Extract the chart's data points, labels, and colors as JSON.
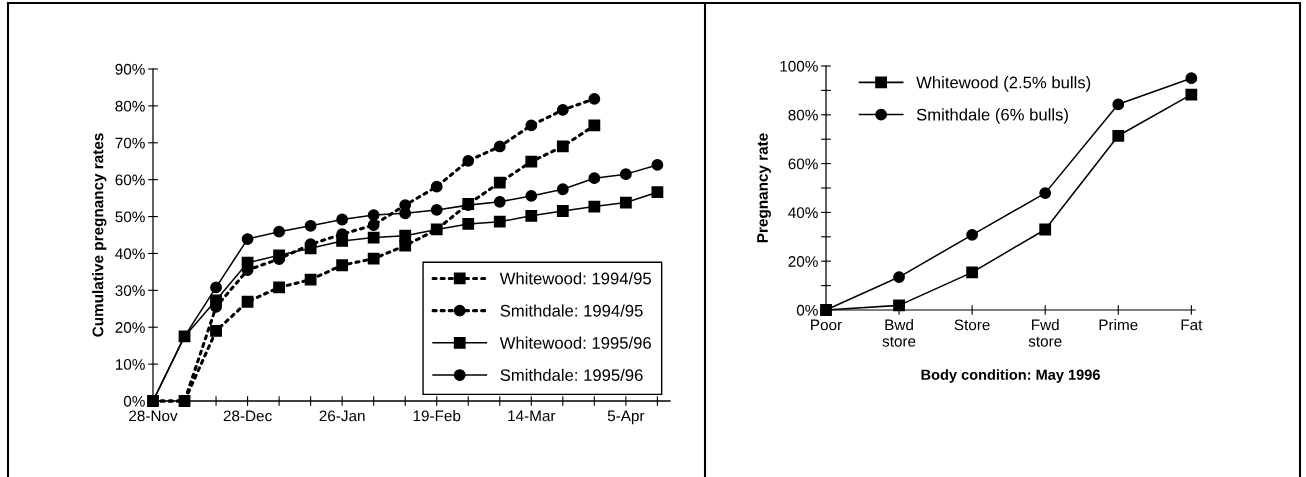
{
  "chart_data": [
    {
      "type": "line",
      "ylabel": "Cumulative pregnancy rates",
      "categories": [
        "28-Nov",
        null,
        null,
        "28-Dec",
        null,
        null,
        "26-Jan",
        null,
        null,
        "19-Feb",
        null,
        null,
        "14-Mar",
        null,
        null,
        "5-Apr",
        null
      ],
      "series": [
        {
          "name": "Whitewood: 1994/95",
          "color": "#000000",
          "marker": "square",
          "line_style": "dotted",
          "values": [
            0,
            0,
            19,
            26.9,
            30.8,
            32.9,
            36.8,
            38.6,
            42.1,
            46.5,
            53.4,
            59.2,
            64.9,
            69,
            74.7,
            null,
            null
          ]
        },
        {
          "name": "Smithdale: 1994/95",
          "color": "#000000",
          "marker": "circle",
          "line_style": "dotted",
          "values": [
            0,
            0,
            25.5,
            35.5,
            38.5,
            42.5,
            45.2,
            47.7,
            53.1,
            58.1,
            65.1,
            69,
            74.7,
            78.9,
            81.9,
            null,
            null
          ]
        },
        {
          "name": "Whitewood: 1995/96",
          "color": "#000000",
          "marker": "square",
          "line_style": "solid",
          "values": [
            0,
            17.5,
            27.3,
            37.5,
            39.5,
            41.4,
            43.4,
            44.3,
            44.8,
            46.5,
            48,
            48.6,
            50.2,
            51.5,
            52.7,
            53.8,
            56.6
          ]
        },
        {
          "name": "Smithdale: 1995/96",
          "color": "#000000",
          "marker": "circle",
          "line_style": "solid",
          "values": [
            0,
            17.5,
            30.8,
            43.9,
            45.9,
            47.5,
            49.2,
            50.4,
            50.9,
            51.8,
            53.1,
            54,
            55.6,
            57.4,
            60.4,
            61.5,
            64
          ]
        }
      ],
      "ylim": [
        0,
        90
      ],
      "yticks": [
        {
          "value": 0,
          "label": "0%"
        },
        {
          "value": 10,
          "label": "10%"
        },
        {
          "value": 20,
          "label": "20%"
        },
        {
          "value": 30,
          "label": "30%"
        },
        {
          "value": 40,
          "label": "40%"
        },
        {
          "value": 50,
          "label": "50%"
        },
        {
          "value": 60,
          "label": "60%"
        },
        {
          "value": 70,
          "label": "70%"
        },
        {
          "value": 80,
          "label": "80%"
        },
        {
          "value": 90,
          "label": "90%"
        }
      ],
      "legend": "bottom right"
    },
    {
      "type": "line",
      "ylabel": "Pregnancy rate",
      "xlabel": "Body condition: May 1996",
      "categories": [
        "Poor",
        "Bwd\nstore",
        "Store",
        "Fwd\nstore",
        "Prime",
        "Fat"
      ],
      "series": [
        {
          "name": "Whitewood (2.5% bulls)",
          "color": "#000000",
          "marker": "square",
          "line_style": "solid",
          "values": [
            0,
            1.9,
            15.4,
            33,
            71.4,
            88.3
          ]
        },
        {
          "name": "Smithdale (6% bulls)",
          "color": "#000000",
          "marker": "circle",
          "line_style": "solid",
          "values": [
            0,
            13.5,
            30.8,
            47.9,
            84.3,
            95
          ]
        }
      ],
      "ylim": [
        0,
        100
      ],
      "yticks": [
        {
          "value": 0,
          "label": "0%"
        },
        {
          "value": 10,
          "label": null
        },
        {
          "value": 20,
          "label": "20%"
        },
        {
          "value": 30,
          "label": null
        },
        {
          "value": 40,
          "label": "40%"
        },
        {
          "value": 50,
          "label": null
        },
        {
          "value": 60,
          "label": "60%"
        },
        {
          "value": 70,
          "label": null
        },
        {
          "value": 80,
          "label": "80%"
        },
        {
          "value": 90,
          "label": null
        },
        {
          "value": 100,
          "label": "100%"
        }
      ],
      "legend": "top left"
    }
  ]
}
